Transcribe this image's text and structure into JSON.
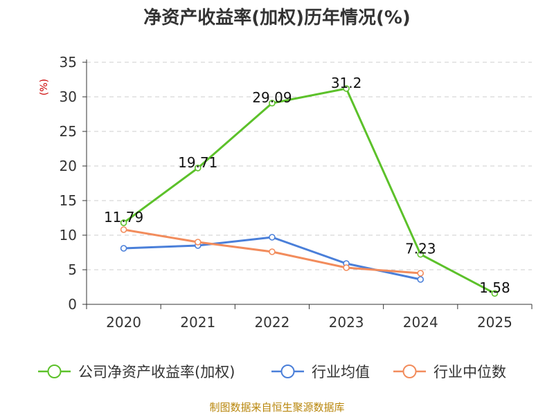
{
  "chart_data": {
    "type": "line",
    "title": "净资产收益率(加权)历年情况(%)",
    "ylabel": "(%)",
    "xlabel": "",
    "ylim": [
      0,
      35
    ],
    "yticks": [
      0,
      5,
      10,
      15,
      20,
      25,
      30,
      35
    ],
    "categories": [
      "2020",
      "2021",
      "2022",
      "2023",
      "2024",
      "2025"
    ],
    "grid": true,
    "legend_position": "bottom",
    "series": [
      {
        "name": "公司净资产收益率(加权)",
        "color": "#5cc12a",
        "values": [
          11.79,
          19.71,
          29.09,
          31.2,
          7.23,
          1.58
        ],
        "labels": [
          "11.79",
          "19.71",
          "29.09",
          "31.2",
          "7.23",
          "1.58"
        ]
      },
      {
        "name": "行业均值",
        "color": "#4a7fd9",
        "values": [
          8.1,
          8.5,
          9.7,
          5.9,
          3.6,
          null
        ]
      },
      {
        "name": "行业中位数",
        "color": "#f28c5c",
        "values": [
          10.8,
          9.0,
          7.6,
          5.3,
          4.5,
          null
        ]
      }
    ],
    "source": "制图数据来自恒生聚源数据库"
  }
}
